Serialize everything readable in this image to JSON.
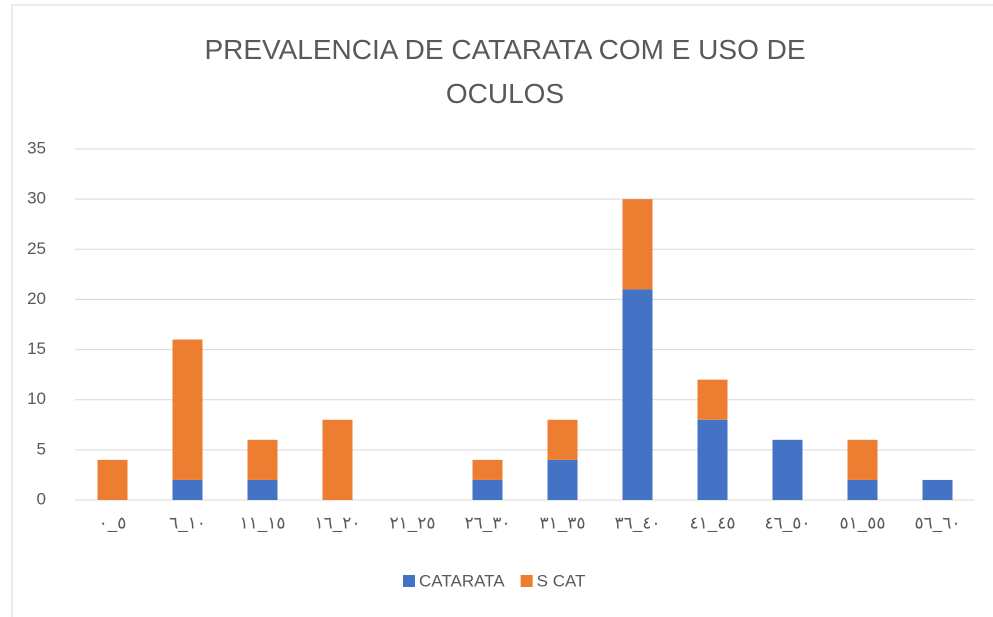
{
  "chart_data": {
    "type": "stacked_bar",
    "title": "PREVALENCIA DE CATARATA COM E USO DE OCULOS",
    "categories": [
      "٥_٠",
      "١٠_٦",
      "١٥_١١",
      "٢٠_١٦",
      "٢٥_٢١",
      "٣٠_٢٦",
      "٣٥_٣١",
      "٤٠_٣٦",
      "٤٥_٤١",
      "٥٠_٤٦",
      "٥٥_٥١",
      "٦٠_٥٦"
    ],
    "series": [
      {
        "name": "CATARATA",
        "color": "#4472c4",
        "values": [
          0,
          2,
          2,
          0,
          0,
          2,
          4,
          21,
          8,
          6,
          2,
          2
        ]
      },
      {
        "name": "S CAT",
        "color": "#ed7d31",
        "values": [
          4,
          14,
          4,
          8,
          0,
          2,
          4,
          9,
          4,
          0,
          4,
          0
        ]
      }
    ],
    "ylim": [
      0,
      35
    ],
    "yticks": [
      0,
      5,
      10,
      15,
      20,
      25,
      30,
      35
    ],
    "grid": true,
    "legend": "bottom"
  }
}
